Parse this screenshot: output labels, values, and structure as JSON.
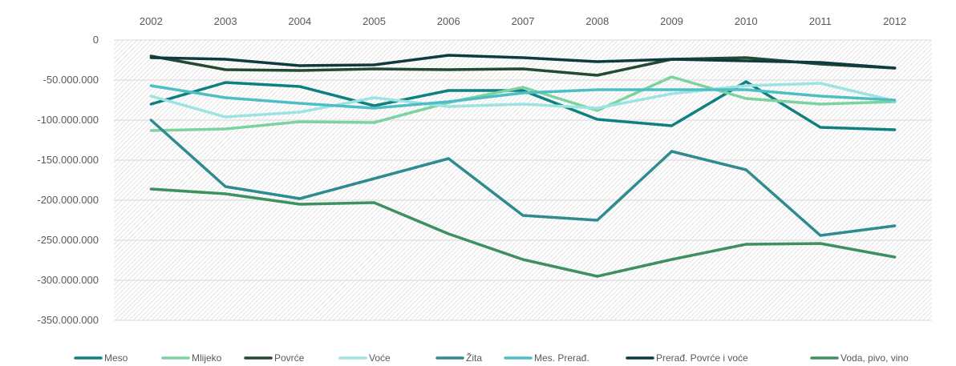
{
  "chart_data": {
    "type": "line",
    "title": "",
    "xlabel": "",
    "ylabel": "",
    "x_axis_position": "top",
    "grid": true,
    "legend_position": "bottom",
    "ylim": [
      -350000000,
      0
    ],
    "y_ticks": [
      0,
      -50000000,
      -100000000,
      -150000000,
      -200000000,
      -250000000,
      -300000000,
      -350000000
    ],
    "y_tick_labels": [
      "0",
      "-50.000.000",
      "-100.000.000",
      "-150.000.000",
      "-200.000.000",
      "-250.000.000",
      "-300.000.000",
      "-350.000.000"
    ],
    "categories": [
      "2002",
      "2003",
      "2004",
      "2005",
      "2006",
      "2007",
      "2008",
      "2009",
      "2010",
      "2011",
      "2012"
    ],
    "series": [
      {
        "name": "Meso",
        "color": "#0f8080",
        "values": [
          -80000000,
          -53000000,
          -58000000,
          -82000000,
          -63000000,
          -63000000,
          -99000000,
          -107000000,
          -52000000,
          -109000000,
          -112000000
        ]
      },
      {
        "name": "Mlijeko",
        "color": "#7dd3a0",
        "values": [
          -113000000,
          -111000000,
          -102000000,
          -103000000,
          -78000000,
          -59000000,
          -88000000,
          -46000000,
          -73000000,
          -80000000,
          -77000000
        ]
      },
      {
        "name": "Povrće",
        "color": "#244a33",
        "values": [
          -20000000,
          -37000000,
          -38000000,
          -36000000,
          -37000000,
          -36000000,
          -44000000,
          -24000000,
          -22000000,
          -30000000,
          -35000000
        ]
      },
      {
        "name": "Voće",
        "color": "#9ee3e3",
        "values": [
          -70000000,
          -96000000,
          -90000000,
          -72000000,
          -83000000,
          -80000000,
          -85000000,
          -67000000,
          -57000000,
          -54000000,
          -76000000
        ]
      },
      {
        "name": "Žita",
        "color": "#2e8b8f",
        "values": [
          -100000000,
          -183000000,
          -198000000,
          -173000000,
          -148000000,
          -219000000,
          -225000000,
          -139000000,
          -162000000,
          -244000000,
          -232000000
        ]
      },
      {
        "name": "Mes. Prerađ.",
        "color": "#4dbfc4",
        "values": [
          -57000000,
          -72000000,
          -79000000,
          -85000000,
          -77000000,
          -66000000,
          -62000000,
          -62000000,
          -62000000,
          -70000000,
          -75000000
        ]
      },
      {
        "name": "Prerađ. Povrće i voće",
        "color": "#0e3b3e",
        "values": [
          -22000000,
          -24000000,
          -32000000,
          -31000000,
          -19000000,
          -22000000,
          -27000000,
          -24000000,
          -26000000,
          -28000000,
          -35000000
        ]
      },
      {
        "name": "Voda, pivo, vino",
        "color": "#3d9160",
        "values": [
          -186000000,
          -192000000,
          -205000000,
          -203000000,
          -242000000,
          -274000000,
          -295000000,
          -274000000,
          -255000000,
          -254000000,
          -271000000
        ]
      }
    ]
  }
}
